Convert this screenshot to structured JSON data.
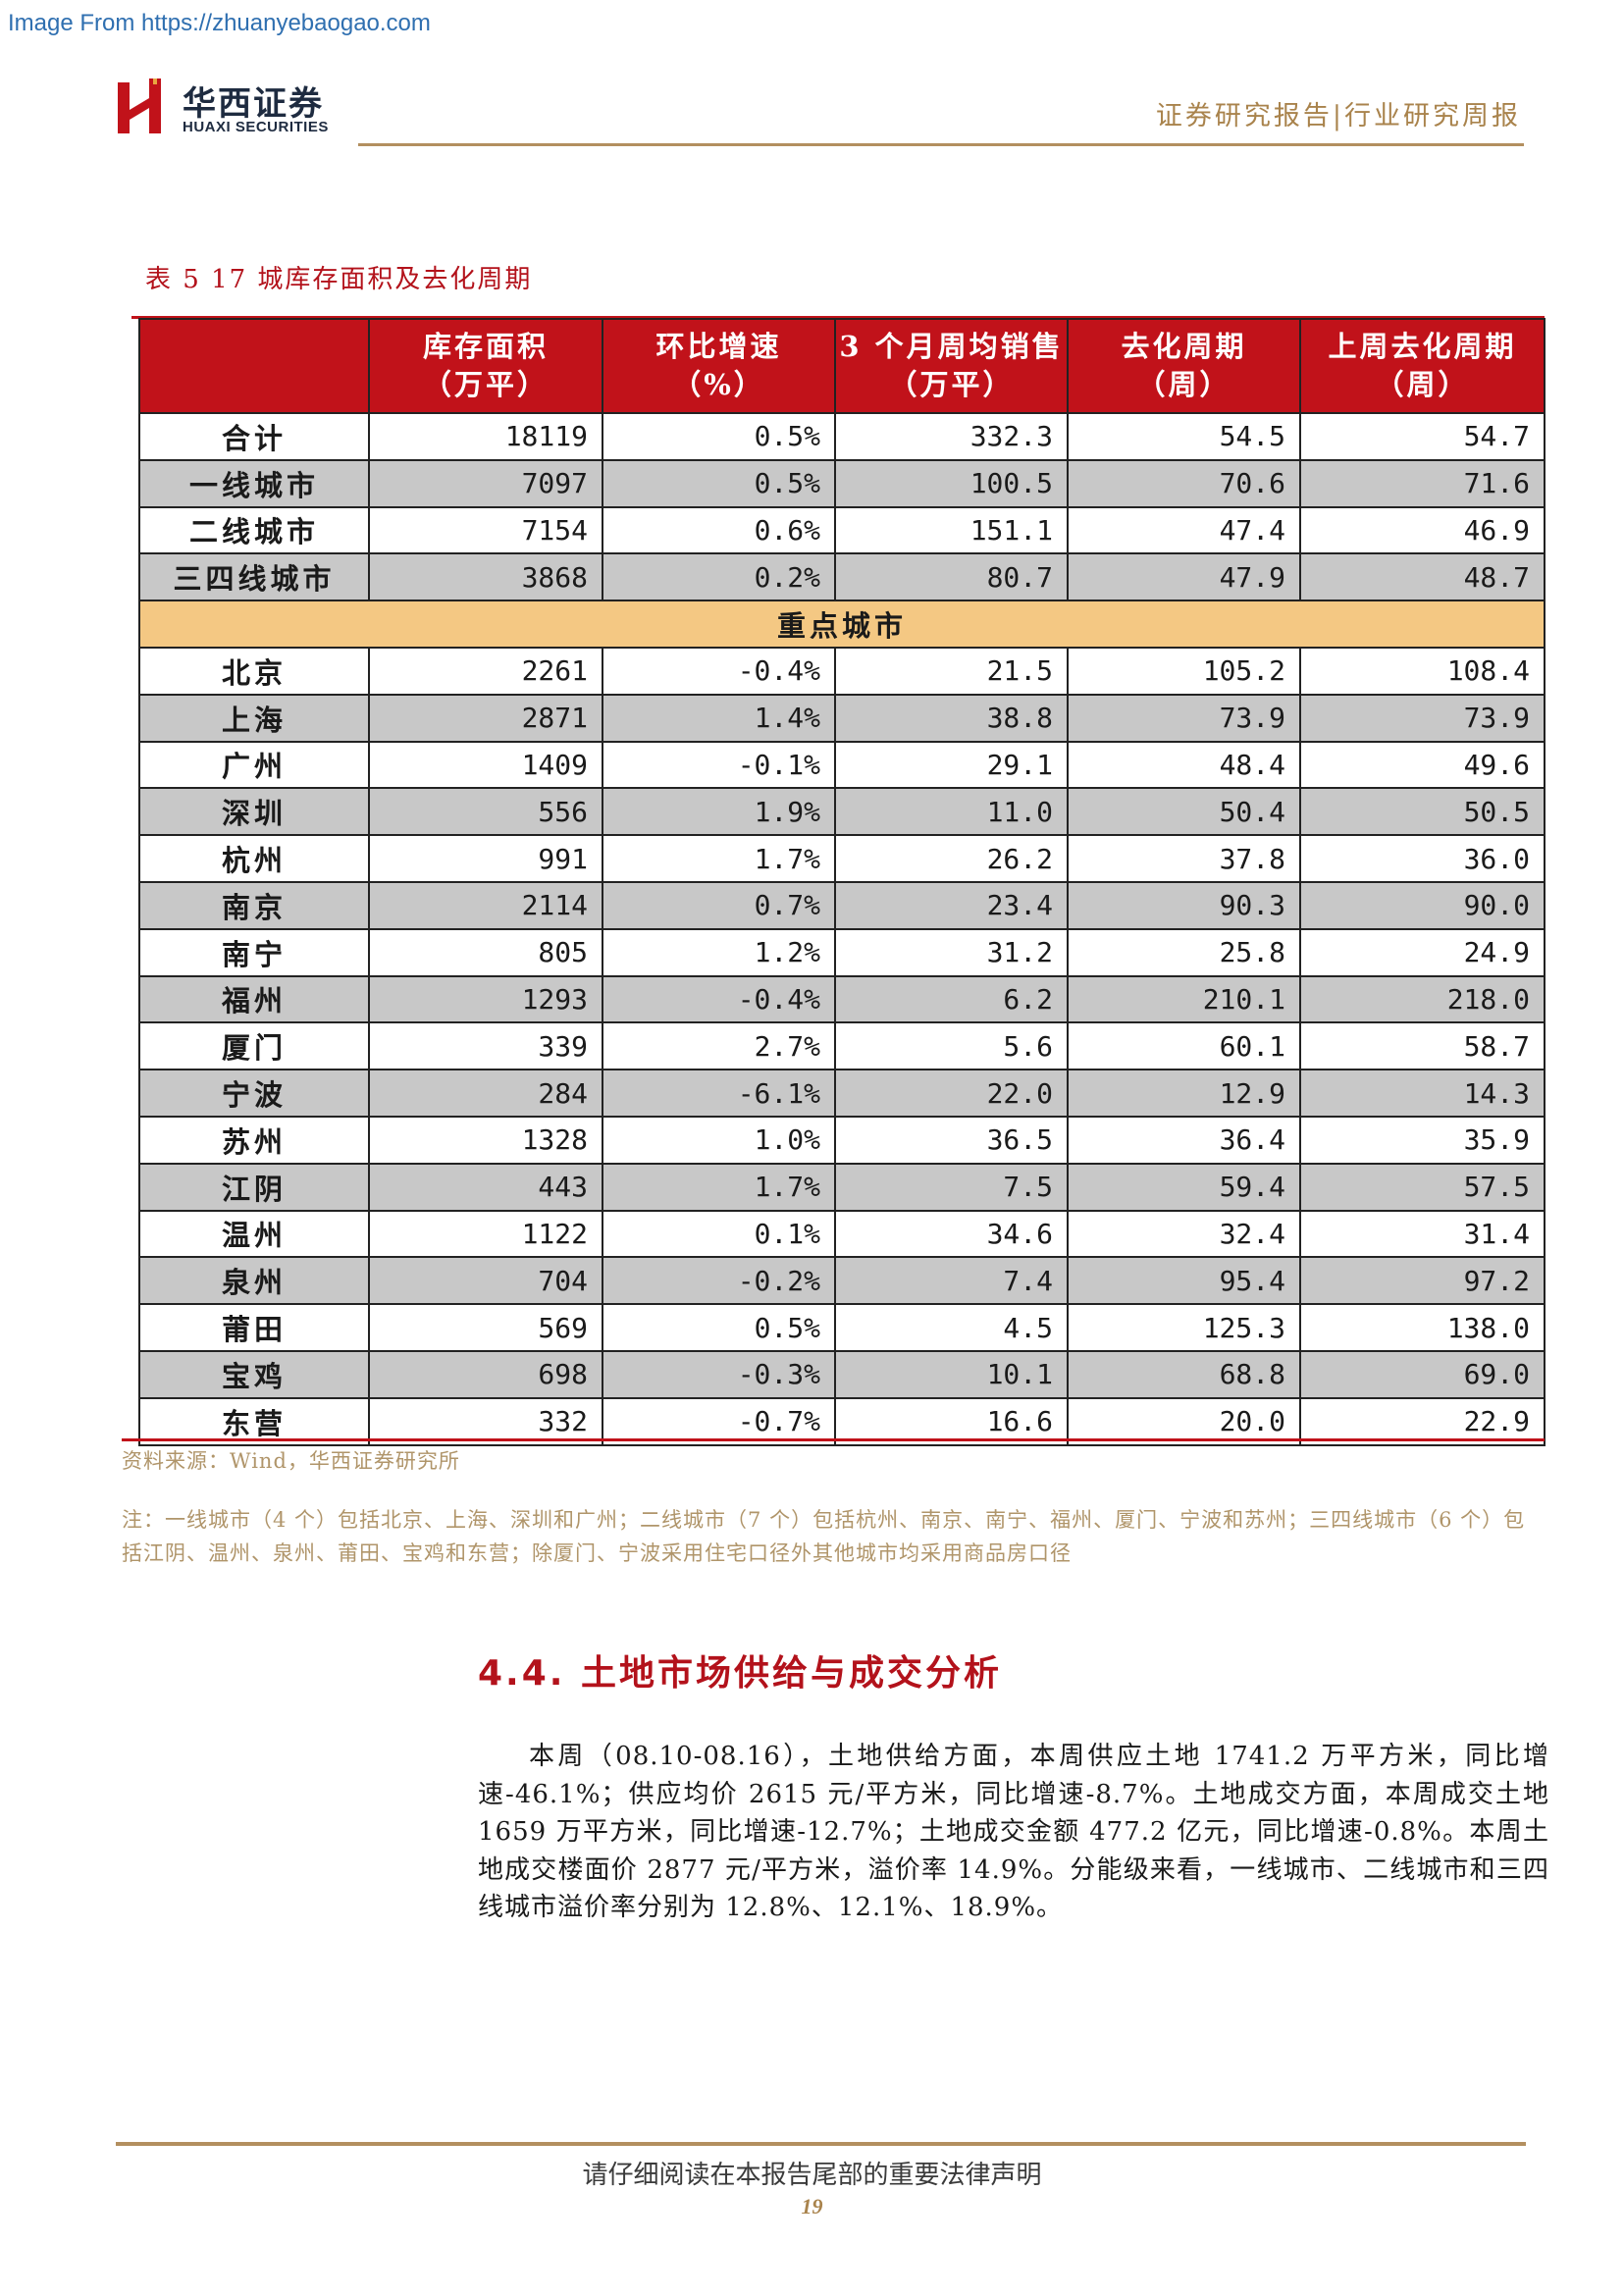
{
  "watermark": "Image From https://zhuanyebaogao.com",
  "brand": {
    "name_cn": "华西证券",
    "name_en": "HUAXI SECURITIES",
    "logo_color": "#c1121a"
  },
  "header": {
    "title": "证券研究报告|行业研究周报"
  },
  "table": {
    "title": "表 5 17 城库存面积及去化周期",
    "headers": [
      {
        "line1": "",
        "line2": ""
      },
      {
        "line1": "库存面积",
        "line2": "（万平）"
      },
      {
        "line1": "环比增速",
        "line2": "（%）"
      },
      {
        "line1": "3 个月周均销售",
        "line2": "（万平）"
      },
      {
        "line1": "去化周期",
        "line2": "（周）"
      },
      {
        "line1": "上周去化周期",
        "line2": "（周）"
      }
    ],
    "summary_rows": [
      {
        "name": "合计",
        "inventory": "18119",
        "growth": "0.5%",
        "avg_sales": "332.3",
        "cycle": "54.5",
        "last_cycle": "54.7",
        "shaded": false
      },
      {
        "name": "一线城市",
        "inventory": "7097",
        "growth": "0.5%",
        "avg_sales": "100.5",
        "cycle": "70.6",
        "last_cycle": "71.6",
        "shaded": true
      },
      {
        "name": "二线城市",
        "inventory": "7154",
        "growth": "0.6%",
        "avg_sales": "151.1",
        "cycle": "47.4",
        "last_cycle": "46.9",
        "shaded": false
      },
      {
        "name": "三四线城市",
        "inventory": "3868",
        "growth": "0.2%",
        "avg_sales": "80.7",
        "cycle": "47.9",
        "last_cycle": "48.7",
        "shaded": true
      }
    ],
    "section_label": "重点城市",
    "city_rows": [
      {
        "name": "北京",
        "inventory": "2261",
        "growth": "-0.4%",
        "avg_sales": "21.5",
        "cycle": "105.2",
        "last_cycle": "108.4",
        "shaded": false
      },
      {
        "name": "上海",
        "inventory": "2871",
        "growth": "1.4%",
        "avg_sales": "38.8",
        "cycle": "73.9",
        "last_cycle": "73.9",
        "shaded": true
      },
      {
        "name": "广州",
        "inventory": "1409",
        "growth": "-0.1%",
        "avg_sales": "29.1",
        "cycle": "48.4",
        "last_cycle": "49.6",
        "shaded": false
      },
      {
        "name": "深圳",
        "inventory": "556",
        "growth": "1.9%",
        "avg_sales": "11.0",
        "cycle": "50.4",
        "last_cycle": "50.5",
        "shaded": true
      },
      {
        "name": "杭州",
        "inventory": "991",
        "growth": "1.7%",
        "avg_sales": "26.2",
        "cycle": "37.8",
        "last_cycle": "36.0",
        "shaded": false
      },
      {
        "name": "南京",
        "inventory": "2114",
        "growth": "0.7%",
        "avg_sales": "23.4",
        "cycle": "90.3",
        "last_cycle": "90.0",
        "shaded": true
      },
      {
        "name": "南宁",
        "inventory": "805",
        "growth": "1.2%",
        "avg_sales": "31.2",
        "cycle": "25.8",
        "last_cycle": "24.9",
        "shaded": false
      },
      {
        "name": "福州",
        "inventory": "1293",
        "growth": "-0.4%",
        "avg_sales": "6.2",
        "cycle": "210.1",
        "last_cycle": "218.0",
        "shaded": true
      },
      {
        "name": "厦门",
        "inventory": "339",
        "growth": "2.7%",
        "avg_sales": "5.6",
        "cycle": "60.1",
        "last_cycle": "58.7",
        "shaded": false
      },
      {
        "name": "宁波",
        "inventory": "284",
        "growth": "-6.1%",
        "avg_sales": "22.0",
        "cycle": "12.9",
        "last_cycle": "14.3",
        "shaded": true
      },
      {
        "name": "苏州",
        "inventory": "1328",
        "growth": "1.0%",
        "avg_sales": "36.5",
        "cycle": "36.4",
        "last_cycle": "35.9",
        "shaded": false
      },
      {
        "name": "江阴",
        "inventory": "443",
        "growth": "1.7%",
        "avg_sales": "7.5",
        "cycle": "59.4",
        "last_cycle": "57.5",
        "shaded": true
      },
      {
        "name": "温州",
        "inventory": "1122",
        "growth": "0.1%",
        "avg_sales": "34.6",
        "cycle": "32.4",
        "last_cycle": "31.4",
        "shaded": false
      },
      {
        "name": "泉州",
        "inventory": "704",
        "growth": "-0.2%",
        "avg_sales": "7.4",
        "cycle": "95.4",
        "last_cycle": "97.2",
        "shaded": true
      },
      {
        "name": "莆田",
        "inventory": "569",
        "growth": "0.5%",
        "avg_sales": "4.5",
        "cycle": "125.3",
        "last_cycle": "138.0",
        "shaded": false
      },
      {
        "name": "宝鸡",
        "inventory": "698",
        "growth": "-0.3%",
        "avg_sales": "10.1",
        "cycle": "68.8",
        "last_cycle": "69.0",
        "shaded": true
      },
      {
        "name": "东营",
        "inventory": "332",
        "growth": "-0.7%",
        "avg_sales": "16.6",
        "cycle": "20.0",
        "last_cycle": "22.9",
        "shaded": false
      }
    ],
    "source": "资料来源：Wind，华西证券研究所",
    "note": "注：一线城市（4 个）包括北京、上海、深圳和广州；二线城市（7 个）包括杭州、南京、南宁、福州、厦门、宁波和苏州；三四线城市（6 个）包括江阴、温州、泉州、莆田、宝鸡和东营；除厦门、宁波采用住宅口径外其他城市均采用商品房口径"
  },
  "section": {
    "heading": "4.4. 土地市场供给与成交分析",
    "body": "本周（08.10-08.16），土地供给方面，本周供应土地 1741.2 万平方米，同比增速-46.1%；供应均价 2615 元/平方米，同比增速-8.7%。土地成交方面，本周成交土地 1659 万平方米，同比增速-12.7%；土地成交金额 477.2 亿元，同比增速-0.8%。本周土地成交楼面价 2877 元/平方米，溢价率 14.9%。分能级来看，一线城市、二线城市和三四线城市溢价率分别为 12.8%、12.1%、18.9%。"
  },
  "footer": {
    "disclaimer": "请仔细阅读在本报告尾部的重要法律声明",
    "page_number": "19"
  }
}
